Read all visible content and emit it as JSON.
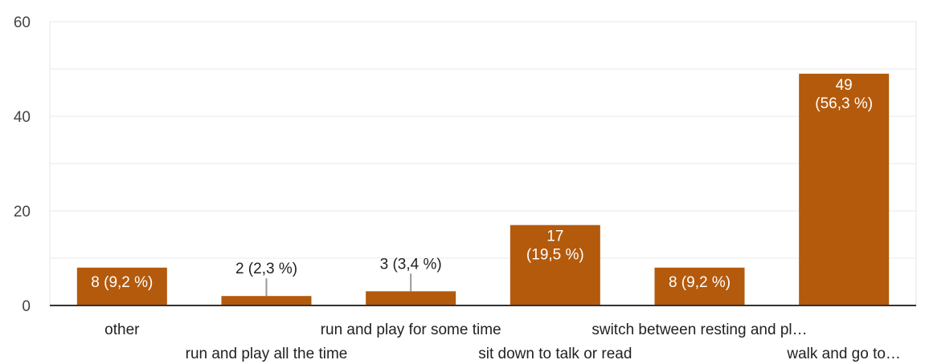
{
  "chart_data": {
    "type": "bar",
    "categories": [
      "other",
      "run and play all the time",
      "run and play for some time",
      "sit down to talk or read",
      "switch between resting and pl…",
      "walk and go to…"
    ],
    "values": [
      8,
      2,
      3,
      17,
      8,
      49
    ],
    "data_labels": [
      "8 (9,2 %)",
      "2 (2,3 %)",
      "3 (3,4 %)",
      "17 (19,5 %)",
      "8 (9,2 %)",
      "49 (56,3 %)"
    ],
    "ylim": [
      0,
      60
    ],
    "yticks": [
      0,
      20,
      40,
      60
    ],
    "grid": true,
    "bar_color": "#b45a0c",
    "title": "",
    "xlabel": "",
    "ylabel": ""
  }
}
